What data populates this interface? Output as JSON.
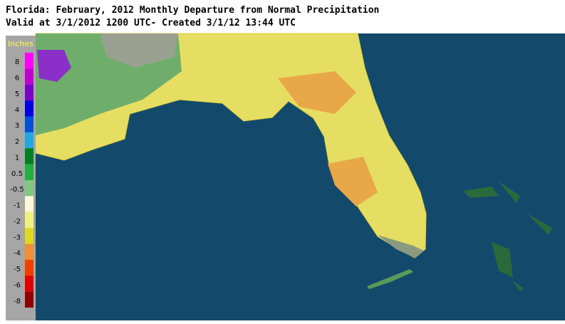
{
  "header": {
    "title": "Florida: February, 2012 Monthly Departure from Normal Precipitation",
    "subtitle": "Valid at 3/1/2012 1200 UTC- Created 3/1/12 13:44 UTC"
  },
  "legend": {
    "unit": "Inches",
    "items": [
      {
        "label": 8,
        "color": "#ff00ff"
      },
      {
        "label": 6,
        "color": "#c000d0"
      },
      {
        "label": 5,
        "color": "#7a00c8"
      },
      {
        "label": 4,
        "color": "#0000e0"
      },
      {
        "label": 3,
        "color": "#0050d8"
      },
      {
        "label": 2,
        "color": "#20a8e0"
      },
      {
        "label": 1,
        "color": "#008020"
      },
      {
        "label": 0.5,
        "color": "#20b040"
      },
      {
        "label": -0.5,
        "color": "#80c880"
      },
      {
        "label": -1,
        "color": "#fff8d8"
      },
      {
        "label": -2,
        "color": "#f0f080"
      },
      {
        "label": -3,
        "color": "#e0d820"
      },
      {
        "label": -4,
        "color": "#f09030"
      },
      {
        "label": -5,
        "color": "#f04000"
      },
      {
        "label": -6,
        "color": "#e00000"
      },
      {
        "label": -8,
        "color": "#900000"
      }
    ]
  }
}
